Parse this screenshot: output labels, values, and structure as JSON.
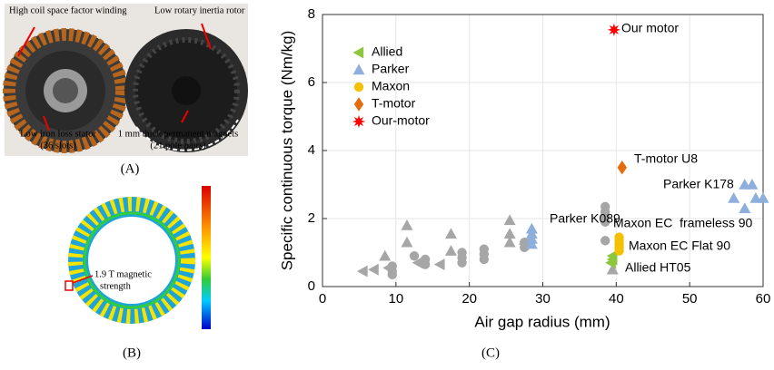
{
  "panels": {
    "a": {
      "label": "(A)",
      "annotations": [
        "High coil space factor winding",
        "Low rotary inertia rotor",
        "Low iron loss stator",
        "(36 slots)",
        "1 mm thick permanent magnets",
        "(21 pole pairs)"
      ]
    },
    "b": {
      "label": "(B)",
      "annotations": [
        "1.9 T magnetic",
        "strength"
      ]
    },
    "c": {
      "label": "(C)"
    }
  },
  "chart_data": {
    "type": "scatter",
    "xlabel": "Air gap radius (mm)",
    "ylabel": "Specific continuous torque (Nm/kg)",
    "xlim": [
      0,
      60
    ],
    "xticks": [
      0,
      10,
      20,
      30,
      40,
      50,
      60
    ],
    "ylim": [
      0,
      8
    ],
    "yticks": [
      0,
      2,
      4,
      6,
      8
    ],
    "grid": true,
    "legend": "upper-left",
    "series": [
      {
        "marker": "circle",
        "color": "#a6a6a6",
        "x": [
          9.5,
          9.5,
          9.5,
          12.5,
          14,
          14,
          19,
          19,
          19,
          22,
          22,
          22,
          27.5,
          27.5,
          38.5,
          38.5,
          38.5,
          38.5,
          38.5
        ],
        "values": [
          0.6,
          0.45,
          0.35,
          0.9,
          0.8,
          0.65,
          1.0,
          0.85,
          0.7,
          1.1,
          0.95,
          0.8,
          1.3,
          1.15,
          2.35,
          2.2,
          2.05,
          1.9,
          1.35
        ]
      },
      {
        "marker": "triangle-up",
        "color": "#a6a6a6",
        "x": [
          8.5,
          11.5,
          11.5,
          17.5,
          17.5,
          25.5,
          25.5,
          25.5,
          39.5
        ],
        "values": [
          0.9,
          1.8,
          1.3,
          1.55,
          1.05,
          1.95,
          1.55,
          1.3,
          0.5
        ]
      },
      {
        "marker": "triangle-left",
        "color": "#a6a6a6",
        "x": [
          5.5,
          7,
          9,
          13,
          16,
          27.5
        ],
        "values": [
          0.45,
          0.5,
          0.55,
          0.7,
          0.65,
          1.25
        ]
      },
      {
        "name": "Allied",
        "marker": "triangle-left",
        "color": "#8dc63f",
        "x": [
          39.5,
          39.5,
          39.3
        ],
        "values": [
          0.9,
          0.8,
          0.7
        ]
      },
      {
        "name": "Parker",
        "marker": "triangle-up",
        "color": "#8eaedb",
        "x": [
          57.5,
          58.5,
          56,
          59,
          60,
          57.5,
          28.5,
          28.5,
          28.5,
          28.5
        ],
        "values": [
          3.0,
          3.0,
          2.6,
          2.6,
          2.6,
          2.3,
          1.7,
          1.55,
          1.4,
          1.25
        ]
      },
      {
        "name": "Maxon",
        "marker": "circle",
        "color": "#f5c000",
        "x": [
          40.4,
          40.4,
          40.4,
          40.4,
          40.4
        ],
        "values": [
          1.45,
          1.35,
          1.25,
          1.15,
          1.05
        ]
      },
      {
        "name": "T-motor",
        "marker": "diamond",
        "color": "#e46c0a",
        "x": [
          40.8
        ],
        "values": [
          3.5
        ]
      },
      {
        "name": "Our-motor",
        "marker": "star",
        "color": "#ff0000",
        "x": [
          39.7
        ],
        "values": [
          7.55
        ]
      }
    ],
    "annotations": [
      "Our motor",
      "T-motor U8",
      "Parker K178",
      "Parker K089",
      "Maxon EC  frameless 90",
      "Maxon EC Flat 90",
      "Allied HT05"
    ]
  }
}
